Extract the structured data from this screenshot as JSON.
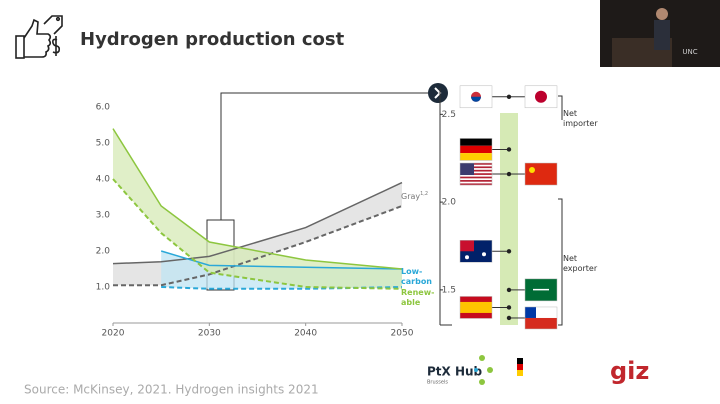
{
  "header": {
    "title": "Hydrogen production cost"
  },
  "chart_data": [
    {
      "type": "band",
      "xlim": [
        2020,
        2050
      ],
      "xticks": [
        2020,
        2030,
        2040,
        2050
      ],
      "ylim": [
        0,
        6
      ],
      "yticks": [
        {
          "value": 1,
          "label": "1.0"
        },
        {
          "value": 2,
          "label": "2.0"
        },
        {
          "value": 3,
          "label": "3.0"
        },
        {
          "value": 4,
          "label": "4.0"
        },
        {
          "value": 5,
          "label": "5.0"
        },
        {
          "value": 6,
          "label": "6.0"
        }
      ],
      "series": [
        {
          "name": "Gray",
          "sup": "1,2",
          "color": "#666666",
          "fill": "#dcdcdc",
          "label_color": "#777777",
          "x": [
            2020,
            2025,
            2030,
            2040,
            2050
          ],
          "upper": [
            1.65,
            1.7,
            1.85,
            2.65,
            3.9
          ],
          "lower": [
            1.05,
            1.05,
            1.35,
            2.25,
            3.25
          ]
        },
        {
          "name_lines": [
            "Low-",
            "carbon"
          ],
          "color": "#2aa8d8",
          "fill": "#bfe4f3",
          "label_color": "#2aa8d8",
          "x": [
            2025,
            2030,
            2040,
            2050
          ],
          "upper": [
            2.0,
            1.6,
            1.55,
            1.5
          ],
          "lower": [
            1.0,
            0.95,
            0.95,
            1.0
          ]
        },
        {
          "name_lines": [
            "Renew-",
            "able"
          ],
          "color": "#8dc63f",
          "fill": "#d6eab5",
          "label_color": "#8dc63f",
          "x": [
            2020,
            2025,
            2030,
            2040,
            2050
          ],
          "upper": [
            5.4,
            3.25,
            2.25,
            1.75,
            1.5
          ],
          "lower": [
            4.0,
            2.5,
            1.4,
            1.0,
            0.95
          ]
        }
      ]
    },
    {
      "type": "dot",
      "ylim": [
        1.3,
        2.65
      ],
      "yticks": [
        1.5,
        {
          "value": 2,
          "label": "2.0"
        },
        2.5
      ],
      "values": [
        2.6,
        2.3,
        2.16,
        1.72,
        1.5,
        1.4,
        1.34
      ],
      "annotations": [
        [
          "Net",
          "importer"
        ],
        [
          "Net",
          "exporter"
        ]
      ]
    }
  ],
  "source": "Source: McKinsey, 2021. Hydrogen insights 2021",
  "logos": {
    "ptx": "PtX Hub",
    "ptx_sub": "Brussels",
    "giz": "giz",
    "venue": "UNC"
  }
}
